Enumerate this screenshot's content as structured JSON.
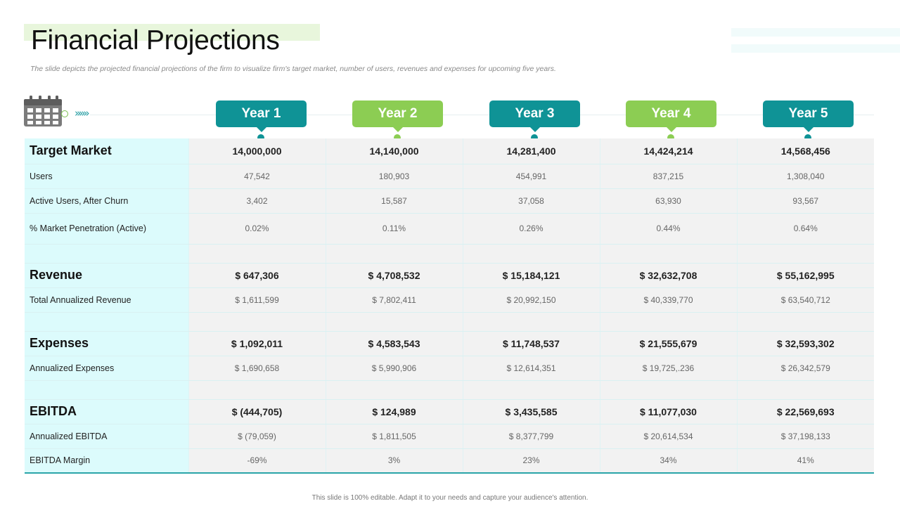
{
  "slide": {
    "title": "Financial Projections",
    "subtitle": "The slide depicts the projected financial projections of the firm to visualize firm's target market, number of users, revenues and expenses for upcoming five years.",
    "footer": "This slide is 100% editable. Adapt it to your needs and capture your audience's attention."
  },
  "icons": {
    "calendar": "calendar-icon",
    "chevrons": "»»»"
  },
  "colors": {
    "teal": "#0f9396",
    "green": "#8ccd53",
    "label_bg": "#dcfbfc",
    "value_bg": "#f2f2f2"
  },
  "years": [
    {
      "label": "Year 1",
      "style": "teal"
    },
    {
      "label": "Year 2",
      "style": "green"
    },
    {
      "label": "Year 3",
      "style": "teal"
    },
    {
      "label": "Year 4",
      "style": "green"
    },
    {
      "label": "Year 5",
      "style": "teal"
    }
  ],
  "table": {
    "target_market": {
      "label": "Target Market",
      "values": [
        "14,000,000",
        "14,140,000",
        "14,281,400",
        "14,424,214",
        "14,568,456"
      ]
    },
    "users": {
      "label": "Users",
      "values": [
        "47,542",
        "180,903",
        "454,991",
        "837,215",
        "1,308,040"
      ]
    },
    "active_users": {
      "label": "Active Users, After Churn",
      "values": [
        "3,402",
        "15,587",
        "37,058",
        "63,930",
        "93,567"
      ]
    },
    "market_penetration": {
      "label": "% Market Penetration (Active)",
      "values": [
        "0.02%",
        "0.11%",
        "0.26%",
        "0.44%",
        "0.64%"
      ]
    },
    "revenue": {
      "label": "Revenue",
      "values": [
        "$ 647,306",
        "$ 4,708,532",
        "$ 15,184,121",
        "$ 32,632,708",
        "$ 55,162,995"
      ]
    },
    "total_annualized_revenue": {
      "label": "Total Annualized Revenue",
      "values": [
        "$ 1,611,599",
        "$ 7,802,411",
        "$ 20,992,150",
        "$ 40,339,770",
        "$ 63,540,712"
      ]
    },
    "expenses": {
      "label": "Expenses",
      "values": [
        "$ 1,092,011",
        "$ 4,583,543",
        "$ 11,748,537",
        "$ 21,555,679",
        "$ 32,593,302"
      ]
    },
    "annualized_expenses": {
      "label": "Annualized Expenses",
      "values": [
        "$ 1,690,658",
        "$ 5,990,906",
        "$ 12,614,351",
        "$ 19,725,.236",
        "$ 26,342,579"
      ]
    },
    "ebitda": {
      "label": "EBITDA",
      "values": [
        "$ (444,705)",
        "$ 124,989",
        "$ 3,435,585",
        "$ 11,077,030",
        "$ 22,569,693"
      ]
    },
    "annualized_ebitda": {
      "label": "Annualized EBITDA",
      "values": [
        "$ (79,059)",
        "$ 1,811,505",
        "$ 8,377,799",
        "$ 20,614,534",
        "$ 37,198,133"
      ]
    },
    "ebitda_margin": {
      "label": "EBITDA Margin",
      "values": [
        "-69%",
        "3%",
        "23%",
        "34%",
        "41%"
      ]
    }
  }
}
